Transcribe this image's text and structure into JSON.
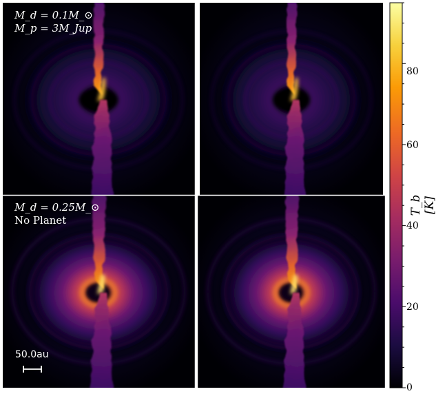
{
  "panels": {
    "top_left": {
      "line1": "M_d = 0.1M_⊙",
      "line2": "M_p = 3M_Jup"
    },
    "bottom_left": {
      "line1": "M_d = 0.25M_⊙",
      "line2": "No Planet"
    }
  },
  "scale_bar": {
    "label": "50.0au"
  },
  "colorbar": {
    "label": "T_b [K]",
    "ticks": [
      "0",
      "20",
      "40",
      "60",
      "80"
    ],
    "min": 0,
    "max": 95,
    "colormap": "inferno",
    "colors": [
      "#000004",
      "#1b0c41",
      "#4a0c6b",
      "#781c6d",
      "#a52c60",
      "#cf4446",
      "#ed6925",
      "#fb9b06",
      "#f7d13d",
      "#fcffa4"
    ]
  }
}
